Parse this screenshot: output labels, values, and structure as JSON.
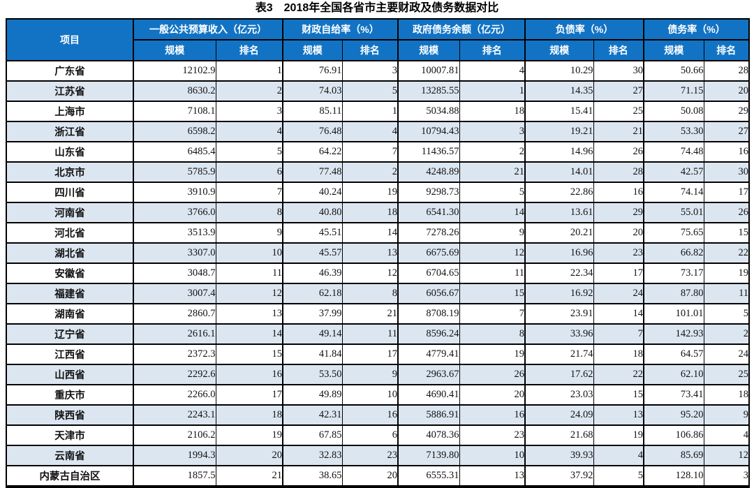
{
  "colors": {
    "header_bg": "#1273c4",
    "header_fg": "#ffffff",
    "alt_row_bg": "#dce6f1",
    "border": "#000000"
  },
  "chart_data": {
    "type": "table",
    "title": "表3　2018年全国各省市主要财政及债务数据对比",
    "corner_header": "项目",
    "groups": [
      {
        "label": "一般公共预算收入（亿元）"
      },
      {
        "label": "财政自给率（%）"
      },
      {
        "label": "政府债务余额（亿元）"
      },
      {
        "label": "负债率（%）"
      },
      {
        "label": "债务率（%）"
      }
    ],
    "sub_headers": [
      "规模",
      "排名"
    ],
    "rows": [
      {
        "name": "广东省",
        "values": [
          "12102.9",
          "1",
          "76.91",
          "3",
          "10007.81",
          "4",
          "10.29",
          "30",
          "50.66",
          "28"
        ]
      },
      {
        "name": "江苏省",
        "values": [
          "8630.2",
          "2",
          "74.03",
          "5",
          "13285.55",
          "1",
          "14.35",
          "27",
          "71.15",
          "20"
        ]
      },
      {
        "name": "上海市",
        "values": [
          "7108.1",
          "3",
          "85.11",
          "1",
          "5034.88",
          "18",
          "15.41",
          "25",
          "50.08",
          "29"
        ]
      },
      {
        "name": "浙江省",
        "values": [
          "6598.2",
          "4",
          "76.48",
          "4",
          "10794.43",
          "3",
          "19.21",
          "21",
          "53.30",
          "27"
        ]
      },
      {
        "name": "山东省",
        "values": [
          "6485.4",
          "5",
          "64.22",
          "7",
          "11436.57",
          "2",
          "14.96",
          "26",
          "74.48",
          "16"
        ]
      },
      {
        "name": "北京市",
        "values": [
          "5785.9",
          "6",
          "77.48",
          "2",
          "4248.89",
          "21",
          "14.01",
          "28",
          "42.57",
          "30"
        ]
      },
      {
        "name": "四川省",
        "values": [
          "3910.9",
          "7",
          "40.24",
          "19",
          "9298.73",
          "5",
          "22.86",
          "16",
          "74.14",
          "17"
        ]
      },
      {
        "name": "河南省",
        "values": [
          "3766.0",
          "8",
          "40.80",
          "18",
          "6541.30",
          "14",
          "13.61",
          "29",
          "55.01",
          "26"
        ]
      },
      {
        "name": "河北省",
        "values": [
          "3513.9",
          "9",
          "45.51",
          "14",
          "7278.26",
          "9",
          "20.21",
          "20",
          "75.65",
          "15"
        ]
      },
      {
        "name": "湖北省",
        "values": [
          "3307.0",
          "10",
          "45.57",
          "13",
          "6675.69",
          "12",
          "16.96",
          "23",
          "66.82",
          "22"
        ]
      },
      {
        "name": "安徽省",
        "values": [
          "3048.7",
          "11",
          "46.39",
          "12",
          "6704.65",
          "11",
          "22.34",
          "17",
          "73.17",
          "19"
        ]
      },
      {
        "name": "福建省",
        "values": [
          "3007.4",
          "12",
          "62.18",
          "8",
          "6056.67",
          "15",
          "16.92",
          "24",
          "87.80",
          "11"
        ]
      },
      {
        "name": "湖南省",
        "values": [
          "2860.7",
          "13",
          "37.99",
          "21",
          "8708.19",
          "7",
          "23.91",
          "14",
          "101.01",
          "5"
        ]
      },
      {
        "name": "辽宁省",
        "values": [
          "2616.1",
          "14",
          "49.14",
          "11",
          "8596.24",
          "8",
          "33.96",
          "7",
          "142.93",
          "2"
        ]
      },
      {
        "name": "江西省",
        "values": [
          "2372.3",
          "15",
          "41.84",
          "17",
          "4779.41",
          "19",
          "21.74",
          "18",
          "64.57",
          "24"
        ]
      },
      {
        "name": "山西省",
        "values": [
          "2292.6",
          "16",
          "53.50",
          "9",
          "2963.67",
          "26",
          "17.62",
          "22",
          "62.10",
          "25"
        ]
      },
      {
        "name": "重庆市",
        "values": [
          "2266.0",
          "17",
          "49.89",
          "10",
          "4690.41",
          "20",
          "23.03",
          "15",
          "73.41",
          "18"
        ]
      },
      {
        "name": "陕西省",
        "values": [
          "2243.1",
          "18",
          "42.31",
          "16",
          "5886.91",
          "16",
          "24.09",
          "13",
          "95.20",
          "9"
        ]
      },
      {
        "name": "天津市",
        "values": [
          "2106.2",
          "19",
          "67.85",
          "6",
          "4078.36",
          "23",
          "21.68",
          "19",
          "106.86",
          "4"
        ]
      },
      {
        "name": "云南省",
        "values": [
          "1994.3",
          "20",
          "32.83",
          "23",
          "7139.80",
          "10",
          "39.93",
          "4",
          "85.69",
          "12"
        ]
      },
      {
        "name": "内蒙古自治区",
        "values": [
          "1857.5",
          "21",
          "38.65",
          "20",
          "6555.31",
          "13",
          "37.92",
          "5",
          "128.10",
          "3"
        ]
      }
    ]
  }
}
